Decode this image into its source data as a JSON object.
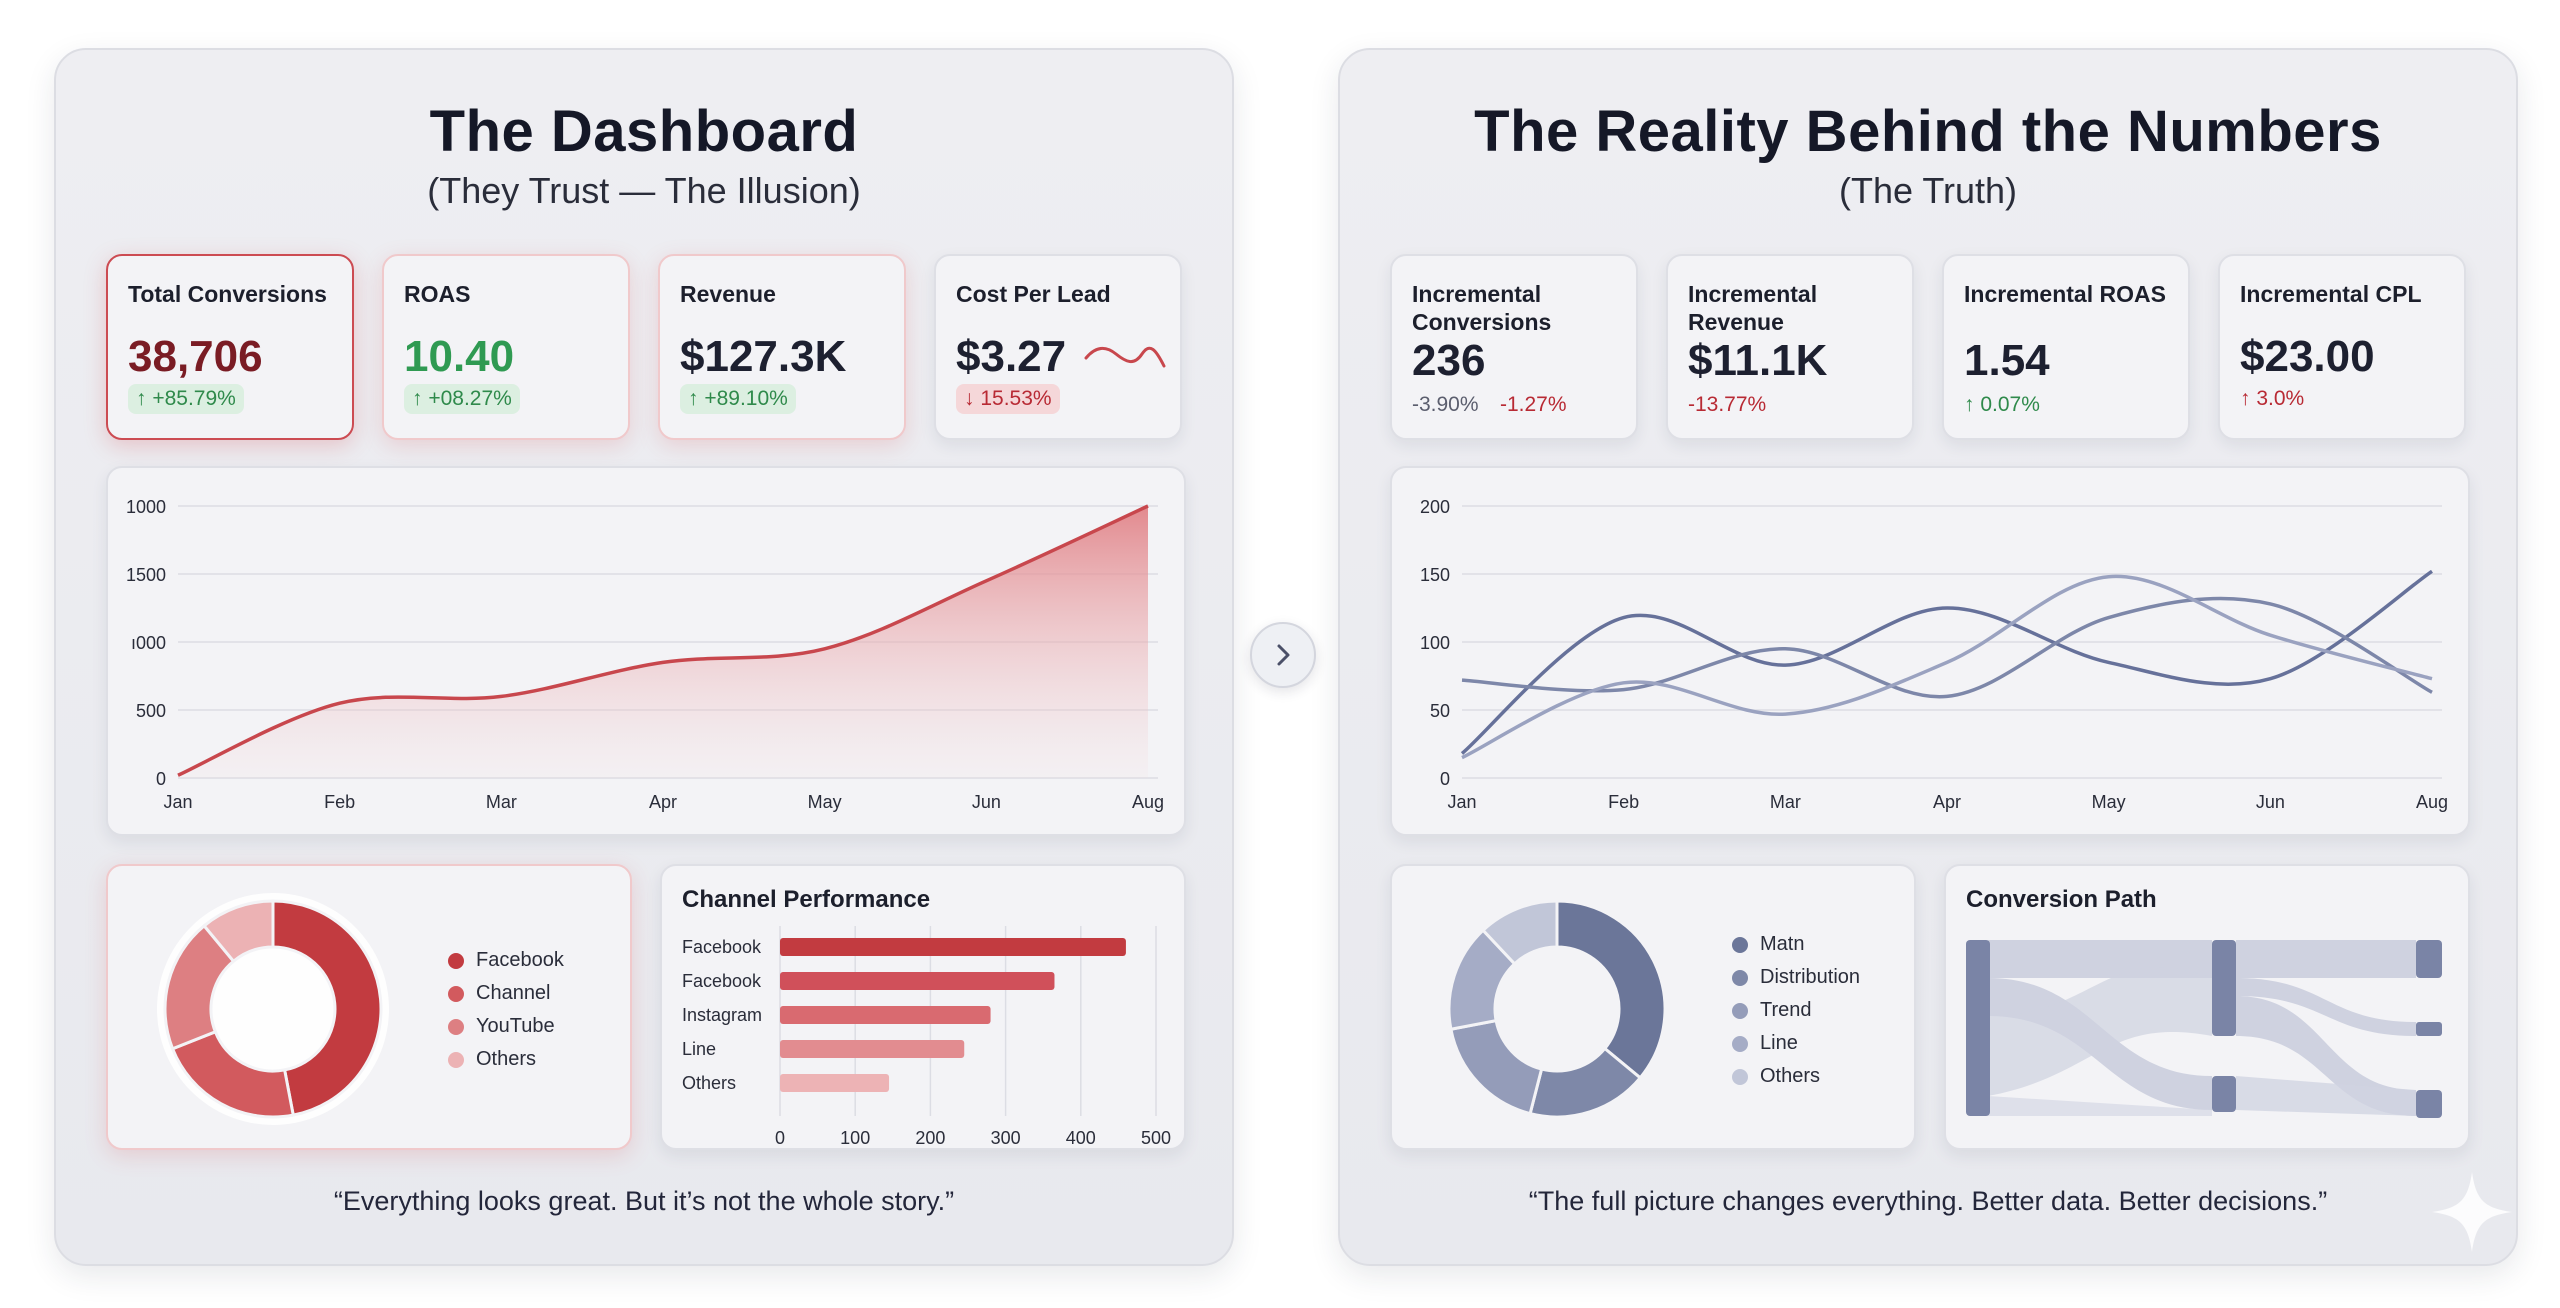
{
  "left": {
    "title": "The Dashboard",
    "subtitle": "(They Trust — The Illusion)",
    "kpis": [
      {
        "label": "Total Conversions",
        "value": "38,706",
        "delta": "↑ +85.79%",
        "value_color": "#7a1c24"
      },
      {
        "label": "ROAS",
        "value": "10.40",
        "delta": "↑ +08.27%",
        "value_color": "#2f9a52"
      },
      {
        "label": "Revenue",
        "value": "$127.3K",
        "delta": "↑ +89.10%",
        "value_color": "#1d2030"
      },
      {
        "label": "Cost Per Lead",
        "value": "$3.27",
        "delta": "↓ 15.53%",
        "value_color": "#1d2030"
      }
    ],
    "quote": "“Everything looks great. But it’s not the whole story.”"
  },
  "right": {
    "title": "The Reality Behind the Numbers",
    "subtitle": "(The Truth)",
    "kpis": [
      {
        "label": "Incremental Conversions",
        "value": "236",
        "delta": "-3.90%",
        "delta2": "-1.27%"
      },
      {
        "label": "Incremental Revenue",
        "value": "$11.1K",
        "delta": "-13.77%"
      },
      {
        "label": "Incremental ROAS",
        "value": "1.54",
        "delta": "↑ 0.07%"
      },
      {
        "label": "Incremental CPL",
        "value": "$23.00",
        "delta": "↑ 3.0%"
      }
    ],
    "quote": "“The full picture changes everything. Better data. Better decisions.”"
  },
  "colors": {
    "red": "#c8474d",
    "red_fill": "#e9a3a6",
    "slate": "#6b7699",
    "slate_light": "#9aa2bf",
    "green": "#2f8a4b"
  },
  "icons": {
    "next": "chevron-right-icon",
    "sparkline": "sparkline-icon",
    "decor": "sparkle-icon"
  },
  "chart_data": [
    {
      "type": "area",
      "title": "",
      "x": [
        "Jan",
        "Feb",
        "Mar",
        "Apr",
        "May",
        "Jun",
        "Aug"
      ],
      "series": [
        {
          "values": [
            20,
            550,
            600,
            850,
            950,
            1450,
            2000
          ]
        }
      ],
      "y_tick_labels": [
        "0",
        "500",
        "ı000",
        "1500",
        "1000"
      ],
      "ylim": [
        0,
        2000
      ],
      "grid": true
    },
    {
      "type": "line",
      "title": "",
      "x": [
        "Jan",
        "Feb",
        "Mar",
        "Apr",
        "May",
        "Jun",
        "Aug"
      ],
      "series": [
        {
          "values": [
            18,
            118,
            83,
            125,
            85,
            73,
            152
          ]
        },
        {
          "values": [
            72,
            65,
            95,
            60,
            118,
            128,
            63
          ]
        },
        {
          "values": [
            15,
            70,
            47,
            85,
            148,
            105,
            73
          ]
        }
      ],
      "y_tick_labels": [
        "0",
        "50",
        "100",
        "150",
        "200"
      ],
      "ylim": [
        0,
        200
      ],
      "grid": true
    },
    {
      "type": "pie",
      "title": "",
      "labels": [
        "Facebook",
        "Channel",
        "YouTube",
        "Others"
      ],
      "values": [
        47,
        22,
        20,
        11
      ],
      "colors": [
        "#c23b40",
        "#d25a5e",
        "#dd7f82",
        "#ecb2b4"
      ]
    },
    {
      "type": "bar",
      "title": "Channel Performance",
      "orientation": "horizontal",
      "categories": [
        "Facebook",
        "Facebook",
        "Instagram",
        "Line",
        "Others"
      ],
      "values": [
        460,
        365,
        280,
        245,
        145
      ],
      "xlim": [
        0,
        500
      ],
      "x_tick_labels": [
        "0",
        "100",
        "200",
        "300",
        "400",
        "500"
      ]
    },
    {
      "type": "pie",
      "title": "",
      "labels": [
        "Matn",
        "Distribution",
        "Trend",
        "Line",
        "Others"
      ],
      "values": [
        36,
        18,
        18,
        16,
        12
      ],
      "colors": [
        "#6b7699",
        "#7e88a8",
        "#949cb9",
        "#a5acc6",
        "#c1c6d8"
      ]
    },
    {
      "type": "sankey",
      "title": "Conversion Path"
    }
  ]
}
